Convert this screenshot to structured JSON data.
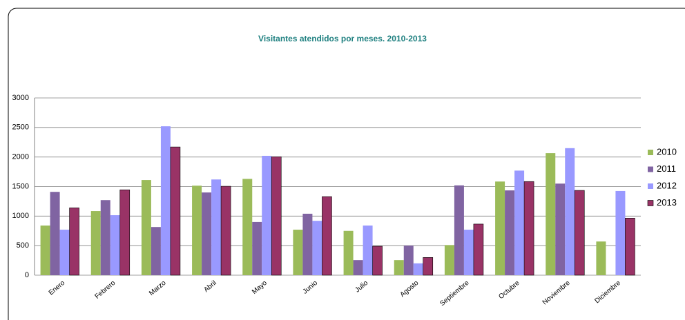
{
  "chart_data": {
    "type": "bar",
    "title": "Visitantes atendidos por meses. 2010-2013",
    "categories": [
      "Enero",
      "Febrero",
      "Marzo",
      "Abril",
      "Mayo",
      "Junio",
      "Julio",
      "Agosto",
      "Septiembre",
      "Octubre",
      "Noviembre",
      "Diciembre"
    ],
    "series": [
      {
        "name": "2010",
        "color": "#9bbb59",
        "values": [
          840,
          1085,
          1610,
          1515,
          1630,
          770,
          750,
          255,
          510,
          1585,
          2065,
          570
        ]
      },
      {
        "name": "2011",
        "color": "#8064a2",
        "values": [
          1410,
          1270,
          815,
          1400,
          900,
          1040,
          255,
          500,
          1520,
          1435,
          1550,
          null
        ]
      },
      {
        "name": "2012",
        "color": "#9999ff",
        "values": [
          770,
          1015,
          2520,
          1620,
          2020,
          920,
          840,
          200,
          770,
          1770,
          2150,
          1425
        ]
      },
      {
        "name": "2013",
        "color": "#993366",
        "values": [
          1140,
          1445,
          2170,
          1505,
          2005,
          1330,
          490,
          300,
          865,
          1585,
          1435,
          965
        ]
      }
    ],
    "ylim": [
      0,
      3000
    ],
    "yticks": [
      0,
      500,
      1000,
      1500,
      2000,
      2500,
      3000
    ],
    "grid": true,
    "legend": "right"
  }
}
